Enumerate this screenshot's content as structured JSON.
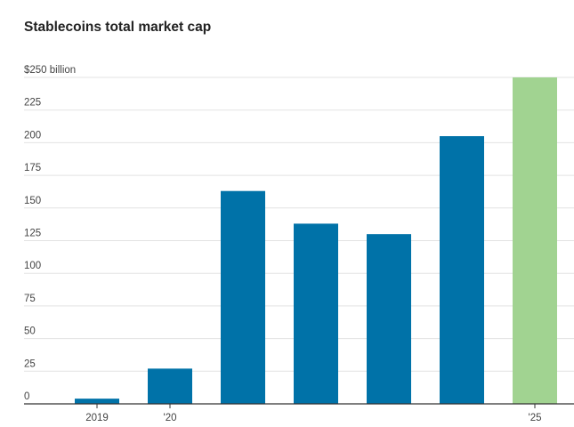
{
  "chart_data": {
    "type": "bar",
    "title": "Stablecoins total market cap",
    "xlabel": "",
    "ylabel": "",
    "ylim": [
      0,
      250
    ],
    "yticks": [
      {
        "value": 0,
        "label": "0"
      },
      {
        "value": 25,
        "label": "25"
      },
      {
        "value": 50,
        "label": "50"
      },
      {
        "value": 75,
        "label": "75"
      },
      {
        "value": 100,
        "label": "100"
      },
      {
        "value": 125,
        "label": "125"
      },
      {
        "value": 150,
        "label": "150"
      },
      {
        "value": 175,
        "label": "175"
      },
      {
        "value": 200,
        "label": "200"
      },
      {
        "value": 225,
        "label": "225"
      },
      {
        "value": 250,
        "label": "$250 billion"
      }
    ],
    "categories": [
      "2019",
      "'20",
      "",
      "",
      "",
      "",
      "'25"
    ],
    "values": [
      4,
      27,
      163,
      138,
      130,
      205,
      250
    ],
    "colors": [
      "#0072a8",
      "#0072a8",
      "#0072a8",
      "#0072a8",
      "#0072a8",
      "#0072a8",
      "#a1d391"
    ],
    "grid": true,
    "legend": "none"
  }
}
